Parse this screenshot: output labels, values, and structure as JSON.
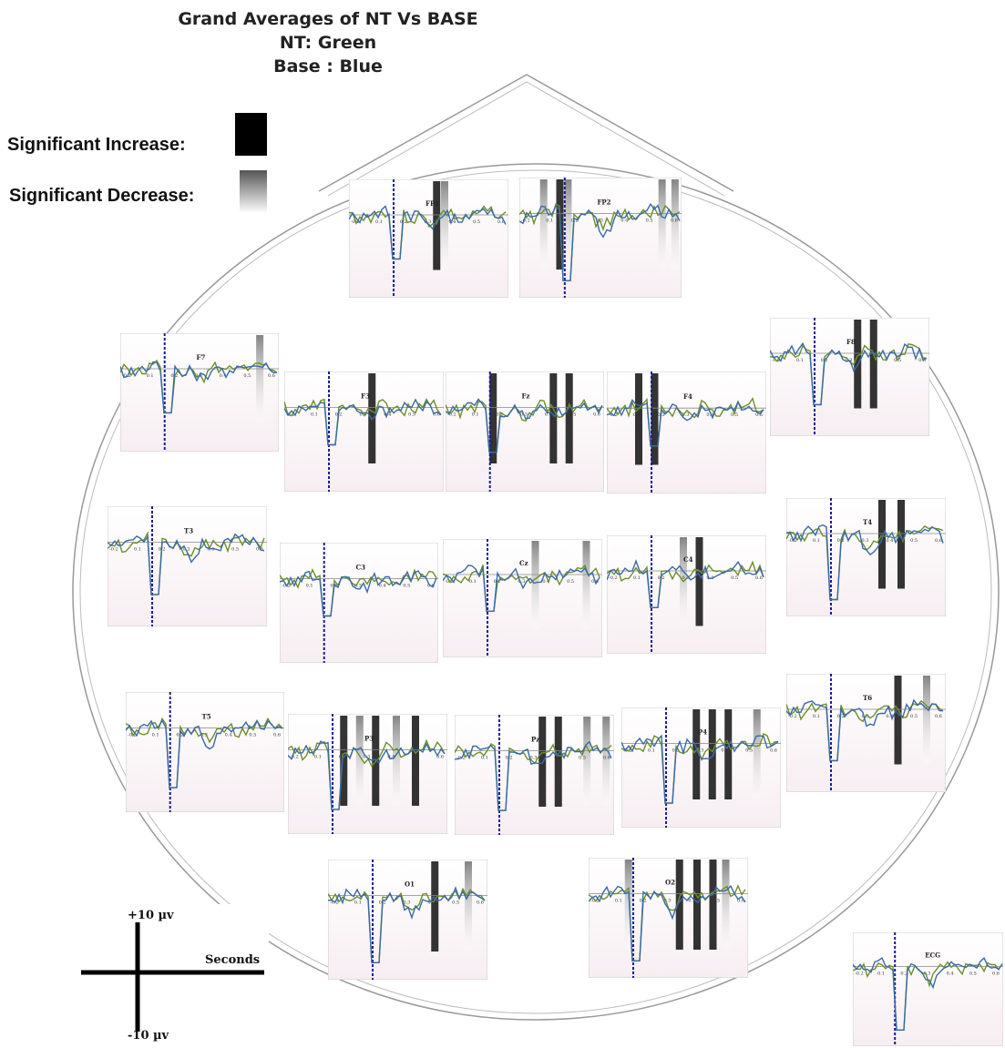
{
  "title": {
    "line1": "Grand Averages of NT Vs BASE",
    "line2": "NT: Green",
    "line3": "Base : Blue"
  },
  "legend": {
    "increase_label": "Significant Increase:",
    "decrease_label": "Significant Decrease:"
  },
  "scale_bar": {
    "top_label": "+10 µv",
    "bottom_label": "-10 µv",
    "axis_label": "Seconds"
  },
  "colors": {
    "nt": "#6b8f2a",
    "base": "#3a6aa8",
    "stimulus_marker": "#1a1aa0",
    "increase": "#111111",
    "decrease": "#777777",
    "panel_fill": "#f7eef2"
  },
  "chart_data": {
    "type": "line",
    "series": [
      {
        "name": "NT",
        "color": "#6b8f2a"
      },
      {
        "name": "Base",
        "color": "#3a6aa8"
      }
    ],
    "tick_labels": [
      "-0.2",
      "0.1",
      "0.2",
      "0.3",
      "0.4",
      "0.5",
      "0.6"
    ],
    "panels": [
      {
        "label": "FP1",
        "dip": 0.6,
        "sig": [
          {
            "kind": "inc",
            "at": 0.55
          },
          {
            "kind": "dec",
            "at": 0.6
          }
        ]
      },
      {
        "label": "FP2",
        "dip": 0.9,
        "sig": [
          {
            "kind": "dec",
            "at": 0.15
          },
          {
            "kind": "inc",
            "at": 0.25
          },
          {
            "kind": "dec",
            "at": 0.3
          },
          {
            "kind": "dec",
            "at": 0.88
          },
          {
            "kind": "dec",
            "at": 0.96
          }
        ]
      },
      {
        "label": "F7",
        "dip": 0.6,
        "sig": [
          {
            "kind": "dec",
            "at": 0.88
          }
        ]
      },
      {
        "label": "F3",
        "dip": 0.5,
        "sig": [
          {
            "kind": "inc",
            "at": 0.55
          }
        ]
      },
      {
        "label": "Fz",
        "dip": 0.6,
        "sig": [
          {
            "kind": "inc",
            "at": 0.3
          },
          {
            "kind": "inc",
            "at": 0.68
          },
          {
            "kind": "inc",
            "at": 0.78
          }
        ]
      },
      {
        "label": "F4",
        "dip": 0.5,
        "sig": [
          {
            "kind": "inc",
            "at": 0.2
          },
          {
            "kind": "inc",
            "at": 0.3
          }
        ]
      },
      {
        "label": "F8",
        "dip": 0.7,
        "sig": [
          {
            "kind": "inc",
            "at": 0.55
          },
          {
            "kind": "inc",
            "at": 0.65
          }
        ]
      },
      {
        "label": "T3",
        "dip": 0.7,
        "sig": []
      },
      {
        "label": "C3",
        "dip": 0.5,
        "sig": []
      },
      {
        "label": "Cz",
        "dip": 0.5,
        "sig": [
          {
            "kind": "dec",
            "at": 0.58
          },
          {
            "kind": "dec",
            "at": 0.9
          }
        ]
      },
      {
        "label": "C4",
        "dip": 0.5,
        "sig": [
          {
            "kind": "dec",
            "at": 0.48
          },
          {
            "kind": "inc",
            "at": 0.58
          }
        ]
      },
      {
        "label": "T4",
        "dip": 0.9,
        "sig": [
          {
            "kind": "inc",
            "at": 0.6
          },
          {
            "kind": "inc",
            "at": 0.72
          }
        ]
      },
      {
        "label": "T5",
        "dip": 0.8,
        "sig": []
      },
      {
        "label": "P3",
        "dip": 0.8,
        "sig": [
          {
            "kind": "inc",
            "at": 0.35
          },
          {
            "kind": "dec",
            "at": 0.45
          },
          {
            "kind": "inc",
            "at": 0.55
          },
          {
            "kind": "dec",
            "at": 0.68
          },
          {
            "kind": "inc",
            "at": 0.8
          }
        ]
      },
      {
        "label": "Pz",
        "dip": 0.8,
        "sig": [
          {
            "kind": "inc",
            "at": 0.55
          },
          {
            "kind": "inc",
            "at": 0.65
          },
          {
            "kind": "dec",
            "at": 0.83
          },
          {
            "kind": "dec",
            "at": 0.95
          }
        ]
      },
      {
        "label": "P4",
        "dip": 0.8,
        "sig": [
          {
            "kind": "inc",
            "at": 0.47
          },
          {
            "kind": "inc",
            "at": 0.57
          },
          {
            "kind": "inc",
            "at": 0.67
          },
          {
            "kind": "dec",
            "at": 0.85
          }
        ]
      },
      {
        "label": "T6",
        "dip": 0.7,
        "sig": [
          {
            "kind": "inc",
            "at": 0.7
          },
          {
            "kind": "dec",
            "at": 0.88
          }
        ]
      },
      {
        "label": "O1",
        "dip": 0.9,
        "sig": [
          {
            "kind": "inc",
            "at": 0.67
          },
          {
            "kind": "dec",
            "at": 0.88
          }
        ]
      },
      {
        "label": "O2",
        "dip": 0.9,
        "sig": [
          {
            "kind": "dec",
            "at": 0.25
          },
          {
            "kind": "inc",
            "at": 0.57
          },
          {
            "kind": "inc",
            "at": 0.68
          },
          {
            "kind": "inc",
            "at": 0.78
          },
          {
            "kind": "dec",
            "at": 0.86
          }
        ]
      },
      {
        "label": "ECG",
        "dip": 0.9,
        "sig": []
      }
    ]
  }
}
